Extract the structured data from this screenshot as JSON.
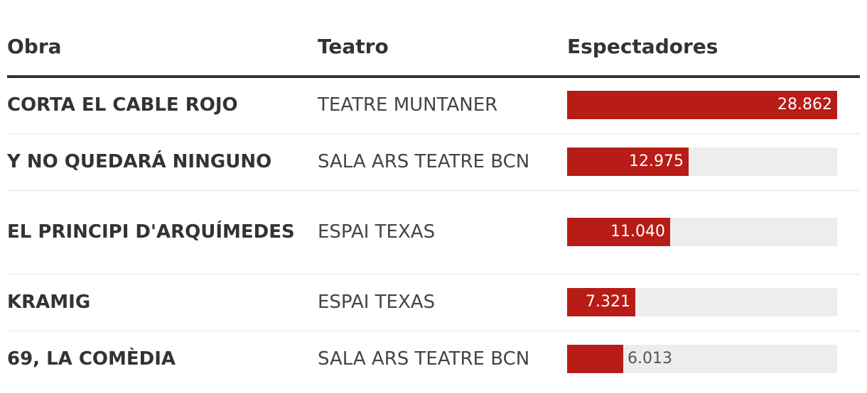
{
  "table": {
    "headers": {
      "obra": "Obra",
      "teatro": "Teatro",
      "espectadores": "Espectadores"
    }
  },
  "chart_data": {
    "type": "bar",
    "orientation": "horizontal",
    "categories": [
      "CORTA EL CABLE ROJO",
      "Y NO QUEDARÁ NINGUNO",
      "EL PRINCIPI D'ARQUÍMEDES",
      "KRAMIG",
      "69, LA COMÈDIA"
    ],
    "theaters": [
      "TEATRE MUNTANER",
      "SALA ARS TEATRE BCN",
      "ESPAI TEXAS",
      "ESPAI TEXAS",
      "SALA ARS TEATRE BCN"
    ],
    "values": [
      28862,
      12975,
      11040,
      7321,
      6013
    ],
    "value_labels": [
      "28.862",
      "12.975",
      "11.040",
      "7.321",
      "6.013"
    ],
    "xlim": [
      0,
      28862
    ],
    "bar_color": "#b71c16",
    "track_color": "#ededed"
  }
}
